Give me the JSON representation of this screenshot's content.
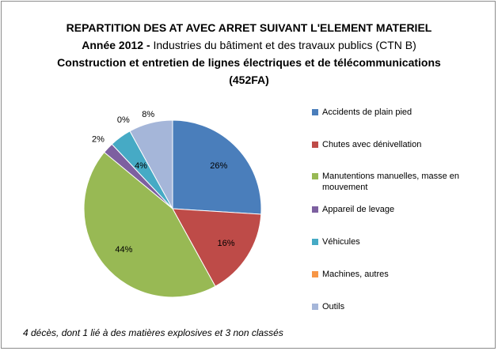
{
  "chart_data": {
    "type": "pie",
    "title_line_1": "REPARTITION DES AT AVEC ARRET SUIVANT L'ELEMENT MATERIEL",
    "subtitle_prefix": "Année 2012  -",
    "subtitle_rest": "Industries du bâtiment et des travaux publics (CTN B)",
    "title_line_3": "Construction et entretien de lignes électriques et de télécommunications",
    "title_line_4": "(452FA)",
    "categories": [
      "Accidents de plain pied",
      "Chutes avec dénivellation",
      "Manutentions manuelles, masse en mouvement",
      "Appareil de levage",
      "Véhicules",
      "Machines, autres",
      "Outils"
    ],
    "values": [
      26,
      16,
      44,
      2,
      4,
      0,
      8
    ],
    "value_labels": [
      "26%",
      "16%",
      "44%",
      "2%",
      "4%",
      "0%",
      "8%"
    ],
    "colors": [
      "#4a7ebb",
      "#be4b48",
      "#98b954",
      "#7d60a0",
      "#46aac5",
      "#f79646",
      "#a5b6d9"
    ],
    "legend_position": "right",
    "footnote": "4 décès, dont 1 lié à des matières explosives et 3 non classés"
  }
}
